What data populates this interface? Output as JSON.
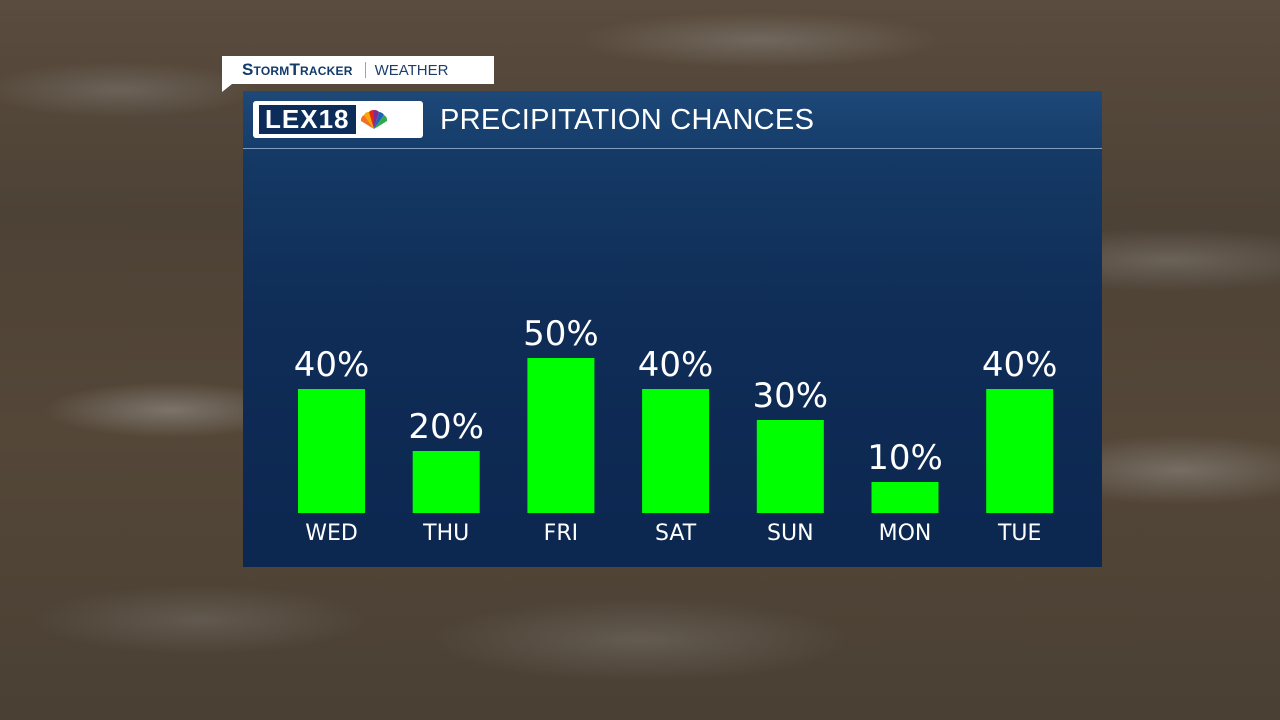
{
  "branding": {
    "show_name": "StormTracker",
    "section": "WEATHER",
    "station_logo": "LEX18",
    "network_icon": "peacock-icon"
  },
  "colors": {
    "bar": "#00ff00",
    "panel": "#0f2d57",
    "text": "#ffffff"
  },
  "chart_data": {
    "type": "bar",
    "title": "PRECIPITATION CHANCES",
    "categories": [
      "WED",
      "THU",
      "FRI",
      "SAT",
      "SUN",
      "MON",
      "TUE"
    ],
    "values": [
      40,
      20,
      50,
      40,
      30,
      10,
      40
    ],
    "value_labels": [
      "40%",
      "20%",
      "50%",
      "40%",
      "30%",
      "10%",
      "40%"
    ],
    "unit": "%",
    "ylim": [
      0,
      50
    ],
    "grid": false,
    "legend": "none"
  }
}
